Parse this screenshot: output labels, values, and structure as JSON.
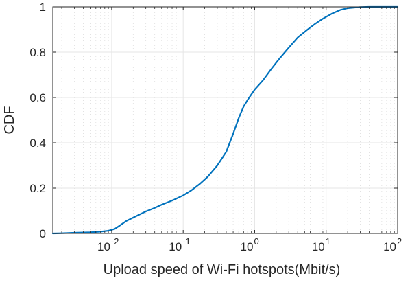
{
  "chart_data": {
    "type": "line",
    "xlabel": "Upload speed of Wi-Fi hotspots(Mbit/s)",
    "ylabel": "CDF",
    "xscale": "log",
    "xlim": [
      0.0015,
      100
    ],
    "ylim": [
      0,
      1
    ],
    "grid": true,
    "legend": "none",
    "x_ticks": [
      {
        "value": 0.01,
        "base": "10",
        "exp": "-2"
      },
      {
        "value": 0.1,
        "base": "10",
        "exp": "-1"
      },
      {
        "value": 1,
        "base": "10",
        "exp": "0"
      },
      {
        "value": 10,
        "base": "10",
        "exp": "1"
      },
      {
        "value": 100,
        "base": "10",
        "exp": "2"
      }
    ],
    "y_ticks": [
      {
        "value": 0,
        "label": "0"
      },
      {
        "value": 0.2,
        "label": "0.2"
      },
      {
        "value": 0.4,
        "label": "0.4"
      },
      {
        "value": 0.6,
        "label": "0.6"
      },
      {
        "value": 0.8,
        "label": "0.8"
      },
      {
        "value": 1,
        "label": "1"
      }
    ],
    "series": [
      {
        "color": "#0072BD",
        "x": [
          0.0015,
          0.002,
          0.003,
          0.005,
          0.007,
          0.009,
          0.011,
          0.013,
          0.016,
          0.02,
          0.025,
          0.03,
          0.04,
          0.05,
          0.07,
          0.1,
          0.13,
          0.17,
          0.22,
          0.3,
          0.4,
          0.5,
          0.6,
          0.7,
          0.8,
          1.0,
          1.3,
          1.7,
          2.2,
          3.0,
          4.0,
          5.5,
          7.0,
          9.0,
          12,
          16,
          20,
          25,
          30,
          40,
          60,
          100
        ],
        "y": [
          0.0,
          0.001,
          0.003,
          0.005,
          0.008,
          0.012,
          0.02,
          0.035,
          0.055,
          0.07,
          0.085,
          0.097,
          0.113,
          0.127,
          0.145,
          0.168,
          0.19,
          0.218,
          0.25,
          0.3,
          0.36,
          0.44,
          0.51,
          0.56,
          0.59,
          0.635,
          0.675,
          0.725,
          0.77,
          0.82,
          0.865,
          0.9,
          0.925,
          0.948,
          0.97,
          0.987,
          0.994,
          0.997,
          0.999,
          1.0,
          1.0,
          1.0
        ]
      }
    ]
  }
}
